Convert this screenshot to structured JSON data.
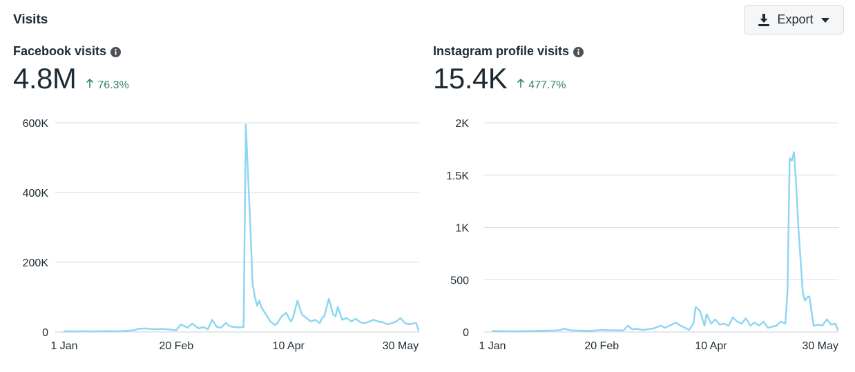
{
  "section_title": "Visits",
  "export": {
    "label": "Export",
    "icon": "download-icon",
    "caret_icon": "caret-down-icon"
  },
  "colors": {
    "line": "#8fd6f2",
    "grid": "#dadde1",
    "positive": "#2f8560",
    "text": "#1c2b33"
  },
  "panels": [
    {
      "title": "Facebook visits",
      "value": "4.8M",
      "change": "76.3%",
      "change_direction": "up"
    },
    {
      "title": "Instagram profile visits",
      "value": "15.4K",
      "change": "477.7%",
      "change_direction": "up"
    }
  ],
  "chart_data": [
    {
      "type": "line",
      "title": "",
      "xlabel": "",
      "ylabel": "",
      "ylim": [
        0,
        600000
      ],
      "y_ticks": [
        0,
        200000,
        400000,
        600000
      ],
      "y_tick_labels": [
        "0",
        "200K",
        "400K",
        "600K"
      ],
      "x_ticks": [
        "2024-01-01",
        "2024-02-20",
        "2024-04-10",
        "2024-05-30"
      ],
      "x_tick_labels": [
        "1 Jan",
        "20 Feb",
        "10 Apr",
        "30 May"
      ],
      "xlim": [
        "2024-01-01",
        "2024-06-07"
      ],
      "grid": true,
      "series": [
        {
          "x": [
            "2024-01-01",
            "2024-01-05",
            "2024-01-10",
            "2024-01-15",
            "2024-01-20",
            "2024-01-25",
            "2024-01-28",
            "2024-02-01",
            "2024-02-03",
            "2024-02-06",
            "2024-02-10",
            "2024-02-14",
            "2024-02-17",
            "2024-02-20",
            "2024-02-22",
            "2024-02-25",
            "2024-02-27",
            "2024-03-01",
            "2024-03-03",
            "2024-03-05",
            "2024-03-07",
            "2024-03-09",
            "2024-03-11",
            "2024-03-13",
            "2024-03-15",
            "2024-03-17",
            "2024-03-19",
            "2024-03-21",
            "2024-03-22",
            "2024-03-23",
            "2024-03-24",
            "2024-03-25",
            "2024-03-26",
            "2024-03-27",
            "2024-03-28",
            "2024-03-29",
            "2024-03-31",
            "2024-04-02",
            "2024-04-04",
            "2024-04-05",
            "2024-04-07",
            "2024-04-09",
            "2024-04-11",
            "2024-04-12",
            "2024-04-14",
            "2024-04-16",
            "2024-04-18",
            "2024-04-20",
            "2024-04-22",
            "2024-04-24",
            "2024-04-25",
            "2024-04-26",
            "2024-04-28",
            "2024-04-30",
            "2024-05-01",
            "2024-05-02",
            "2024-05-04",
            "2024-05-06",
            "2024-05-08",
            "2024-05-10",
            "2024-05-12",
            "2024-05-14",
            "2024-05-16",
            "2024-05-18",
            "2024-05-20",
            "2024-05-22",
            "2024-05-24",
            "2024-05-26",
            "2024-05-28",
            "2024-05-30",
            "2024-06-01",
            "2024-06-03",
            "2024-06-05",
            "2024-06-06",
            "2024-06-07"
          ],
          "y": [
            2000,
            1500,
            2000,
            1500,
            2500,
            2000,
            3000,
            5000,
            9000,
            10000,
            8000,
            9000,
            7000,
            5000,
            22000,
            12000,
            24000,
            10000,
            14000,
            8000,
            35000,
            15000,
            12000,
            26000,
            16000,
            14000,
            13000,
            14000,
            595000,
            450000,
            300000,
            140000,
            100000,
            75000,
            90000,
            70000,
            50000,
            30000,
            20000,
            25000,
            45000,
            55000,
            30000,
            40000,
            90000,
            50000,
            40000,
            30000,
            35000,
            25000,
            40000,
            45000,
            95000,
            50000,
            45000,
            72000,
            35000,
            40000,
            30000,
            38000,
            28000,
            25000,
            30000,
            35000,
            30000,
            28000,
            22000,
            25000,
            30000,
            40000,
            25000,
            22000,
            25000,
            25000,
            5000
          ]
        }
      ]
    },
    {
      "type": "line",
      "title": "",
      "xlabel": "",
      "ylabel": "",
      "ylim": [
        0,
        2000
      ],
      "y_ticks": [
        0,
        500,
        1000,
        1500,
        2000
      ],
      "y_tick_labels": [
        "0",
        "500",
        "1K",
        "1.5K",
        "2K"
      ],
      "x_ticks": [
        "2024-01-01",
        "2024-02-20",
        "2024-04-10",
        "2024-05-30"
      ],
      "x_tick_labels": [
        "1 Jan",
        "20 Feb",
        "10 Apr",
        "30 May"
      ],
      "xlim": [
        "2024-01-01",
        "2024-06-07"
      ],
      "grid": true,
      "series": [
        {
          "x": [
            "2024-01-01",
            "2024-01-10",
            "2024-01-20",
            "2024-01-31",
            "2024-02-03",
            "2024-02-06",
            "2024-02-15",
            "2024-02-20",
            "2024-02-25",
            "2024-03-01",
            "2024-03-03",
            "2024-03-05",
            "2024-03-07",
            "2024-03-10",
            "2024-03-15",
            "2024-03-18",
            "2024-03-20",
            "2024-03-22",
            "2024-03-25",
            "2024-03-27",
            "2024-03-29",
            "2024-03-31",
            "2024-04-02",
            "2024-04-03",
            "2024-04-05",
            "2024-04-07",
            "2024-04-08",
            "2024-04-10",
            "2024-04-12",
            "2024-04-14",
            "2024-04-16",
            "2024-04-18",
            "2024-04-20",
            "2024-04-22",
            "2024-04-24",
            "2024-04-26",
            "2024-04-28",
            "2024-04-30",
            "2024-05-02",
            "2024-05-04",
            "2024-05-06",
            "2024-05-08",
            "2024-05-10",
            "2024-05-12",
            "2024-05-14",
            "2024-05-15",
            "2024-05-16",
            "2024-05-17",
            "2024-05-18",
            "2024-05-19",
            "2024-05-20",
            "2024-05-22",
            "2024-05-23",
            "2024-05-24",
            "2024-05-25",
            "2024-05-26",
            "2024-05-27",
            "2024-05-29",
            "2024-05-31",
            "2024-06-02",
            "2024-06-04",
            "2024-06-06",
            "2024-06-07"
          ],
          "y": [
            10,
            5,
            10,
            15,
            30,
            15,
            10,
            20,
            15,
            15,
            60,
            25,
            30,
            20,
            35,
            60,
            40,
            60,
            90,
            60,
            40,
            20,
            80,
            240,
            200,
            60,
            170,
            80,
            120,
            70,
            80,
            60,
            140,
            100,
            80,
            130,
            60,
            90,
            60,
            100,
            40,
            50,
            60,
            100,
            80,
            380,
            1660,
            1640,
            1720,
            1400,
            1000,
            380,
            300,
            330,
            340,
            200,
            60,
            70,
            60,
            120,
            70,
            80,
            20
          ]
        }
      ]
    }
  ]
}
